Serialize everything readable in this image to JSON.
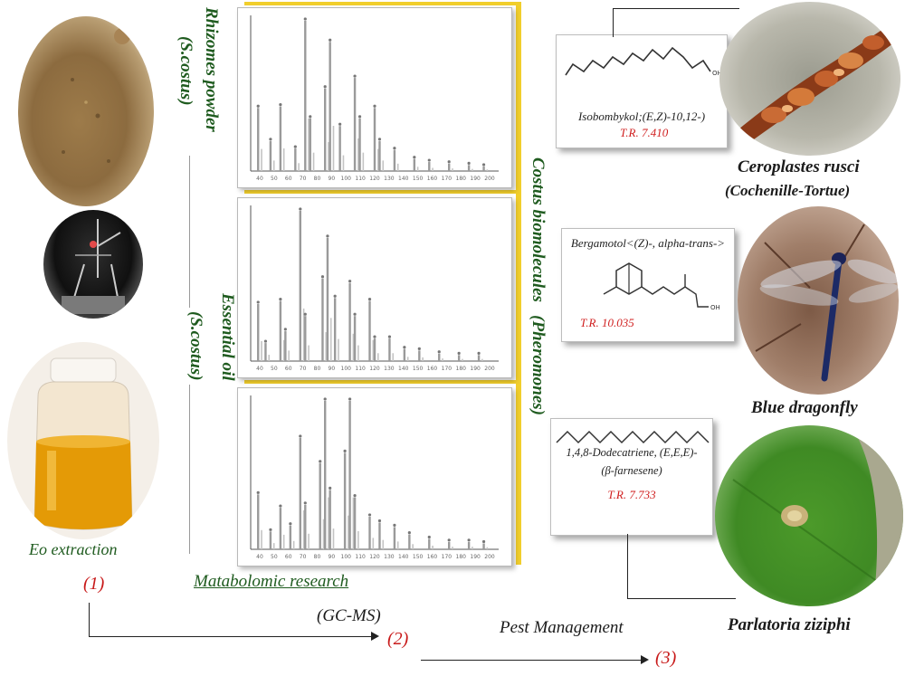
{
  "left_column": {
    "eo_label": "Eo extraction",
    "step1": "(1)"
  },
  "middle": {
    "rhizomes_label": "Rhizomes powder",
    "rhizomes_species": "(S.costus)",
    "oil_label": "Essential oil",
    "oil_species": "(S.costus)",
    "metabolomic": "Matabolomic research",
    "gcms": "(GC-MS)",
    "step2": "(2)",
    "spectrum_axis_1": [
      "40",
      "50",
      "60",
      "70",
      "80",
      "90",
      "100",
      "110",
      "120",
      "130",
      "140",
      "150",
      "160",
      "170",
      "180",
      "190",
      "200"
    ],
    "spectrum_axis_2": [
      "40",
      "50",
      "60",
      "70",
      "80",
      "90",
      "100",
      "110",
      "120",
      "130",
      "140",
      "150",
      "160",
      "170",
      "180",
      "190",
      "200"
    ],
    "spectrum_axis_3": [
      "40",
      "50",
      "60",
      "70",
      "80",
      "90",
      "100",
      "110",
      "120",
      "130",
      "140",
      "150",
      "160",
      "170",
      "180",
      "190",
      "200"
    ]
  },
  "biomolecules": {
    "title": "Costus biomolecules   (Pheromones)"
  },
  "compounds": [
    {
      "name": "Isobombykol;(E,Z)-10,12-)",
      "tr": "T.R. 7.410"
    },
    {
      "name": "Bergamotol<(Z)-, alpha-trans->",
      "tr": "T.R. 10.035"
    },
    {
      "name_line1": "1,4,8-Dodecatriene, (E,E,E)-",
      "name_line2": "(β-farnesene)",
      "tr": "T.R. 7.733"
    }
  ],
  "pests": [
    {
      "name": "Ceroplastes rusci",
      "common": "(Cochenille-Tortue)"
    },
    {
      "name": "Blue dragonfly"
    },
    {
      "name": "Parlatoria ziziphi"
    }
  ],
  "bottom": {
    "pest_management": "Pest Management",
    "step3": "(3)"
  },
  "colors": {
    "green_label": "#1f5b1f",
    "red_label": "#c81a1a",
    "gold_bar": "#f1ce2c",
    "oil": "#e49a06",
    "leaf": "#4c9a2a"
  }
}
